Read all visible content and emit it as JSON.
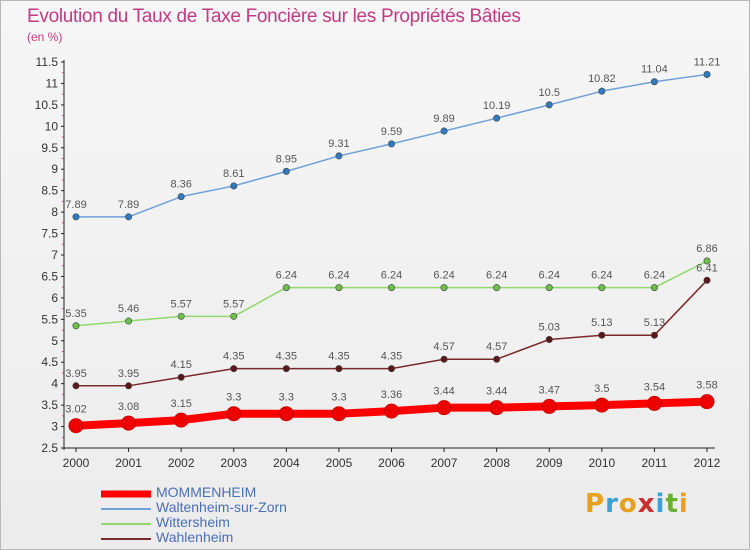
{
  "title": "Evolution du Taux de Taxe Foncière sur les Propriétés Bâties",
  "unit_label": "(en %)",
  "logo": {
    "text": "Proxiti",
    "colors": [
      "#e8a020",
      "#3aa0d8",
      "#e8a020",
      "#c83030",
      "#3aa0d8",
      "#68b030",
      "#e8a020"
    ]
  },
  "chart_data": {
    "type": "line",
    "title": "Evolution du Taux de Taxe Foncière sur les Propriétés Bâties",
    "ylabel": "(en %)",
    "xlabel": "",
    "x": [
      "2000",
      "2001",
      "2002",
      "2003",
      "2004",
      "2005",
      "2006",
      "2007",
      "2008",
      "2009",
      "2010",
      "2011",
      "2012"
    ],
    "ylim": [
      2.5,
      11.5
    ],
    "yticks": [
      "2.5",
      "3",
      "3.5",
      "4",
      "4.5",
      "5",
      "5.5",
      "6",
      "6.5",
      "7",
      "7.5",
      "8",
      "8.5",
      "9",
      "9.5",
      "10",
      "10.5",
      "11",
      "11.5"
    ],
    "grid": false,
    "legend_position": "bottom-left",
    "series": [
      {
        "name": "Waltenheim-sur-Zorn",
        "color": "#6fa0d8",
        "marker": "#2e7bbf",
        "values": [
          7.89,
          7.89,
          8.36,
          8.61,
          8.95,
          9.31,
          9.59,
          9.89,
          10.19,
          10.5,
          10.82,
          11.04,
          11.21
        ],
        "labels": [
          "7.89",
          "7.89",
          "8.36",
          "8.61",
          "8.95",
          "9.31",
          "9.59",
          "9.89",
          "10.19",
          "10.5",
          "10.82",
          "11.04",
          "11.21"
        ]
      },
      {
        "name": "Wittersheim",
        "color": "#8fd86a",
        "marker": "#6cc04a",
        "values": [
          5.35,
          5.46,
          5.57,
          5.57,
          6.24,
          6.24,
          6.24,
          6.24,
          6.24,
          6.24,
          6.24,
          6.24,
          6.86
        ],
        "labels": [
          "5.35",
          "5.46",
          "5.57",
          "5.57",
          "6.24",
          "6.24",
          "6.24",
          "6.24",
          "6.24",
          "6.24",
          "6.24",
          "6.24",
          "6.86"
        ]
      },
      {
        "name": "Wahlenheim",
        "color": "#7a2a2a",
        "marker": "#5a1818",
        "values": [
          3.95,
          3.95,
          4.15,
          4.35,
          4.35,
          4.35,
          4.35,
          4.57,
          4.57,
          5.03,
          5.13,
          5.13,
          6.41
        ],
        "labels": [
          "3.95",
          "3.95",
          "4.15",
          "4.35",
          "4.35",
          "4.35",
          "4.35",
          "4.57",
          "4.57",
          "5.03",
          "5.13",
          "5.13",
          "6.41"
        ]
      },
      {
        "name": "MOMMENHEIM",
        "color": "#ff0000",
        "marker": "#ee0000",
        "values": [
          3.02,
          3.08,
          3.15,
          3.3,
          3.3,
          3.3,
          3.36,
          3.44,
          3.44,
          3.47,
          3.5,
          3.54,
          3.58
        ],
        "labels": [
          "3.02",
          "3.08",
          "3.15",
          "3.3",
          "3.3",
          "3.3",
          "3.36",
          "3.44",
          "3.44",
          "3.47",
          "3.5",
          "3.54",
          "3.58"
        ]
      }
    ],
    "legend": [
      {
        "name": "MOMMENHEIM",
        "color": "#ff0000"
      },
      {
        "name": "Waltenheim-sur-Zorn",
        "color": "#6fa0d8"
      },
      {
        "name": "Wittersheim",
        "color": "#8fd86a"
      },
      {
        "name": "Wahlenheim",
        "color": "#7a2a2a"
      }
    ]
  }
}
